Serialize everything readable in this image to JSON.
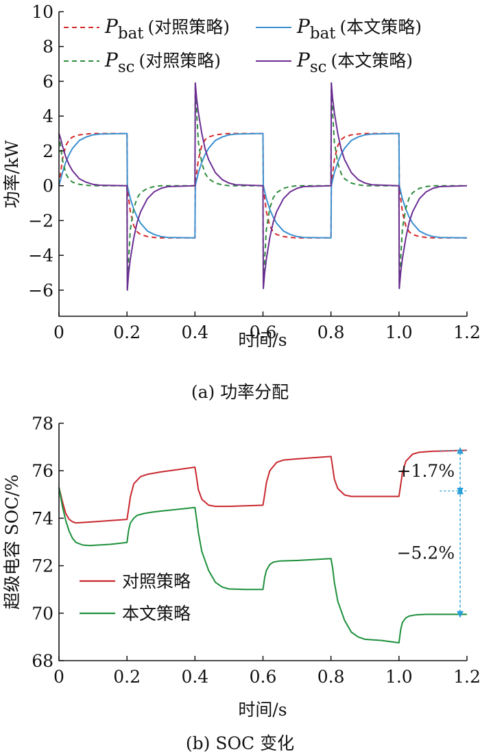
{
  "figure": {
    "caption_a": "(a)  功率分配",
    "caption_b": "(b)  SOC 变化"
  },
  "chart_data": [
    {
      "type": "line",
      "panel": "a",
      "title": "",
      "xlabel": "时间/s",
      "ylabel": "功率/kW",
      "xlim": [
        0,
        1.2
      ],
      "ylim": [
        -7.5,
        10
      ],
      "xticks": [
        0,
        0.2,
        0.4,
        0.6,
        0.8,
        1.0,
        1.2
      ],
      "xtick_labels": [
        "0",
        "0.2",
        "0.4",
        "0.6",
        "0.8",
        "1.0",
        "1.2"
      ],
      "yticks": [
        -6,
        -4,
        -2,
        0,
        2,
        4,
        6,
        8,
        10
      ],
      "ytick_labels": [
        "−6",
        "−4",
        "−2",
        "0",
        "2",
        "4",
        "6",
        "8",
        "10"
      ],
      "grid": false,
      "legend_position": "top",
      "series": [
        {
          "name": "Pbat (对照策略)",
          "sym": "P",
          "sub": "bat",
          "tag": "(对照策略)",
          "color": "#d62728",
          "dash": "dashed",
          "x": [
            0,
            0.01,
            0.02,
            0.03,
            0.04,
            0.06,
            0.08,
            0.1,
            0.2,
            0.201,
            0.21,
            0.22,
            0.23,
            0.24,
            0.26,
            0.28,
            0.3,
            0.4,
            0.401,
            0.41,
            0.42,
            0.43,
            0.44,
            0.46,
            0.48,
            0.5,
            0.6,
            0.601,
            0.61,
            0.62,
            0.63,
            0.64,
            0.66,
            0.68,
            0.7,
            0.8,
            0.801,
            0.81,
            0.82,
            0.83,
            0.84,
            0.86,
            0.88,
            0.9,
            1.0,
            1.001,
            1.01,
            1.02,
            1.03,
            1.04,
            1.06,
            1.08,
            1.1,
            1.2
          ],
          "y": [
            0,
            1.5,
            2.3,
            2.65,
            2.8,
            2.92,
            2.97,
            3.0,
            3.0,
            -0.1,
            -1.5,
            -2.3,
            -2.65,
            -2.8,
            -2.92,
            -2.97,
            -3.0,
            -3.0,
            0.1,
            1.5,
            2.3,
            2.65,
            2.8,
            2.92,
            2.97,
            3.0,
            3.0,
            -0.1,
            -1.5,
            -2.3,
            -2.65,
            -2.8,
            -2.92,
            -2.97,
            -3.0,
            -3.0,
            0.1,
            1.5,
            2.3,
            2.65,
            2.8,
            2.92,
            2.97,
            3.0,
            3.0,
            -0.1,
            -1.5,
            -2.3,
            -2.65,
            -2.8,
            -2.92,
            -2.97,
            -3.0,
            -3.0
          ]
        },
        {
          "name": "Pbat (本文策略)",
          "sym": "P",
          "sub": "bat",
          "tag": "(本文策略)",
          "color": "#3a8fd0",
          "dash": "solid",
          "x": [
            0,
            0.01,
            0.02,
            0.03,
            0.04,
            0.06,
            0.08,
            0.1,
            0.12,
            0.2,
            0.201,
            0.21,
            0.22,
            0.23,
            0.24,
            0.26,
            0.28,
            0.3,
            0.32,
            0.4,
            0.401,
            0.41,
            0.42,
            0.43,
            0.44,
            0.46,
            0.48,
            0.5,
            0.52,
            0.6,
            0.601,
            0.61,
            0.62,
            0.63,
            0.64,
            0.66,
            0.68,
            0.7,
            0.72,
            0.8,
            0.801,
            0.81,
            0.82,
            0.83,
            0.84,
            0.86,
            0.88,
            0.9,
            0.92,
            1.0,
            1.001,
            1.01,
            1.02,
            1.03,
            1.04,
            1.06,
            1.08,
            1.1,
            1.12,
            1.2
          ],
          "y": [
            0,
            0.75,
            1.35,
            1.8,
            2.15,
            2.6,
            2.8,
            2.92,
            2.97,
            3.0,
            0.0,
            -0.75,
            -1.35,
            -1.8,
            -2.15,
            -2.6,
            -2.8,
            -2.92,
            -2.97,
            -3.0,
            0.0,
            0.75,
            1.35,
            1.8,
            2.15,
            2.6,
            2.8,
            2.92,
            2.97,
            3.0,
            0.0,
            -0.75,
            -1.35,
            -1.8,
            -2.15,
            -2.6,
            -2.8,
            -2.92,
            -2.97,
            -3.0,
            0.0,
            0.75,
            1.35,
            1.8,
            2.15,
            2.6,
            2.8,
            2.92,
            2.97,
            3.0,
            0.0,
            -0.75,
            -1.35,
            -1.8,
            -2.15,
            -2.6,
            -2.8,
            -2.92,
            -2.97,
            -3.0
          ]
        },
        {
          "name": "Psc (对照策略)",
          "sym": "P",
          "sub": "sc",
          "tag": "(对照策略)",
          "color": "#2e8b3e",
          "dash": "dashed",
          "x": [
            0,
            0.005,
            0.01,
            0.02,
            0.03,
            0.04,
            0.06,
            0.08,
            0.1,
            0.2,
            0.201,
            0.205,
            0.21,
            0.22,
            0.23,
            0.24,
            0.26,
            0.28,
            0.3,
            0.4,
            0.401,
            0.405,
            0.41,
            0.42,
            0.43,
            0.44,
            0.46,
            0.48,
            0.5,
            0.6,
            0.601,
            0.605,
            0.61,
            0.62,
            0.63,
            0.64,
            0.66,
            0.68,
            0.7,
            0.8,
            0.801,
            0.805,
            0.81,
            0.82,
            0.83,
            0.84,
            0.86,
            0.88,
            0.9,
            1.0,
            1.001,
            1.005,
            1.01,
            1.02,
            1.03,
            1.04,
            1.06,
            1.08,
            1.1,
            1.2
          ],
          "y": [
            3.0,
            2.2,
            1.5,
            0.7,
            0.35,
            0.2,
            0.08,
            0.03,
            0.0,
            0.0,
            -6.0,
            -4.2,
            -2.5,
            -1.3,
            -0.7,
            -0.4,
            -0.15,
            -0.05,
            0.0,
            0.0,
            5.9,
            4.2,
            2.5,
            1.3,
            0.7,
            0.4,
            0.15,
            0.05,
            0.0,
            0.0,
            -5.9,
            -4.2,
            -2.5,
            -1.3,
            -0.7,
            -0.4,
            -0.15,
            -0.05,
            0.0,
            0.0,
            5.9,
            4.2,
            2.5,
            1.3,
            0.7,
            0.4,
            0.15,
            0.05,
            0.0,
            0.0,
            -5.9,
            -4.2,
            -2.5,
            -1.3,
            -0.7,
            -0.4,
            -0.15,
            -0.05,
            0.0,
            0.0
          ]
        },
        {
          "name": "Psc (本文策略)",
          "sym": "P",
          "sub": "sc",
          "tag": "(本文策略)",
          "color": "#6a2c91",
          "dash": "solid",
          "x": [
            0,
            0.005,
            0.01,
            0.02,
            0.03,
            0.04,
            0.06,
            0.08,
            0.1,
            0.12,
            0.2,
            0.201,
            0.205,
            0.21,
            0.22,
            0.23,
            0.24,
            0.26,
            0.28,
            0.3,
            0.32,
            0.4,
            0.401,
            0.405,
            0.41,
            0.42,
            0.43,
            0.44,
            0.46,
            0.48,
            0.5,
            0.52,
            0.6,
            0.601,
            0.605,
            0.61,
            0.62,
            0.63,
            0.64,
            0.66,
            0.68,
            0.7,
            0.72,
            0.8,
            0.801,
            0.805,
            0.81,
            0.82,
            0.83,
            0.84,
            0.86,
            0.88,
            0.9,
            0.92,
            1.0,
            1.001,
            1.005,
            1.01,
            1.02,
            1.03,
            1.04,
            1.06,
            1.08,
            1.1,
            1.12,
            1.2
          ],
          "y": [
            3.0,
            2.7,
            2.3,
            1.65,
            1.2,
            0.85,
            0.4,
            0.2,
            0.08,
            0.03,
            0.0,
            -6.0,
            -5.0,
            -4.2,
            -3.0,
            -2.1,
            -1.5,
            -0.75,
            -0.35,
            -0.15,
            -0.05,
            0.0,
            5.9,
            5.0,
            4.2,
            3.0,
            2.1,
            1.5,
            0.75,
            0.35,
            0.15,
            0.05,
            0.0,
            -5.9,
            -5.0,
            -4.2,
            -3.0,
            -2.1,
            -1.5,
            -0.75,
            -0.35,
            -0.15,
            -0.05,
            0.0,
            5.9,
            5.0,
            4.2,
            3.0,
            2.1,
            1.5,
            0.75,
            0.35,
            0.15,
            0.05,
            0.0,
            -5.9,
            -5.0,
            -4.2,
            -3.0,
            -2.1,
            -1.5,
            -0.75,
            -0.35,
            -0.15,
            -0.05,
            0.0
          ]
        }
      ]
    },
    {
      "type": "line",
      "panel": "b",
      "title": "",
      "xlabel": "时间/s",
      "ylabel": "超级电容 SOC/%",
      "xlim": [
        0,
        1.2
      ],
      "ylim": [
        68,
        78
      ],
      "xticks": [
        0,
        0.2,
        0.4,
        0.6,
        0.8,
        1.0,
        1.2
      ],
      "xtick_labels": [
        "0",
        "0.2",
        "0.4",
        "0.6",
        "0.8",
        "1.0",
        "1.2"
      ],
      "yticks": [
        68,
        70,
        72,
        74,
        76,
        78
      ],
      "ytick_labels": [
        "68",
        "70",
        "72",
        "74",
        "76",
        "78"
      ],
      "grid": false,
      "legend_position": "left",
      "series": [
        {
          "name": "对照策略",
          "color": "#c8262e",
          "dash": "solid",
          "x": [
            0,
            0.01,
            0.02,
            0.03,
            0.04,
            0.05,
            0.1,
            0.15,
            0.2,
            0.205,
            0.21,
            0.22,
            0.24,
            0.26,
            0.3,
            0.4,
            0.405,
            0.41,
            0.42,
            0.44,
            0.46,
            0.5,
            0.6,
            0.605,
            0.61,
            0.62,
            0.64,
            0.66,
            0.7,
            0.8,
            0.805,
            0.81,
            0.82,
            0.84,
            0.86,
            0.9,
            1.0,
            1.005,
            1.01,
            1.02,
            1.04,
            1.06,
            1.1,
            1.2
          ],
          "y": [
            75.3,
            74.7,
            74.2,
            73.95,
            73.85,
            73.8,
            73.85,
            73.9,
            73.95,
            74.4,
            74.9,
            75.45,
            75.75,
            75.85,
            75.95,
            76.15,
            75.7,
            75.2,
            74.8,
            74.55,
            74.5,
            74.5,
            74.55,
            75.0,
            75.5,
            76.0,
            76.35,
            76.45,
            76.5,
            76.6,
            76.15,
            75.65,
            75.25,
            74.98,
            74.92,
            74.92,
            74.92,
            75.4,
            75.9,
            76.4,
            76.7,
            76.78,
            76.82,
            76.86
          ]
        },
        {
          "name": "本文策略",
          "color": "#1b8f3a",
          "dash": "solid",
          "x": [
            0,
            0.01,
            0.02,
            0.03,
            0.04,
            0.05,
            0.07,
            0.09,
            0.15,
            0.2,
            0.205,
            0.21,
            0.22,
            0.23,
            0.25,
            0.27,
            0.3,
            0.4,
            0.405,
            0.41,
            0.42,
            0.44,
            0.46,
            0.48,
            0.5,
            0.55,
            0.6,
            0.605,
            0.61,
            0.62,
            0.63,
            0.65,
            0.7,
            0.8,
            0.805,
            0.81,
            0.82,
            0.84,
            0.86,
            0.88,
            0.9,
            0.95,
            1.0,
            1.005,
            1.01,
            1.02,
            1.03,
            1.05,
            1.08,
            1.2
          ],
          "y": [
            75.3,
            74.5,
            73.9,
            73.45,
            73.15,
            72.98,
            72.87,
            72.85,
            72.9,
            72.98,
            73.5,
            73.8,
            74.0,
            74.12,
            74.2,
            74.25,
            74.3,
            74.45,
            73.95,
            73.4,
            72.6,
            71.8,
            71.3,
            71.1,
            71.02,
            71.0,
            71.0,
            71.5,
            71.8,
            72.05,
            72.15,
            72.2,
            72.22,
            72.3,
            71.9,
            71.3,
            70.5,
            69.7,
            69.2,
            69.0,
            68.9,
            68.85,
            68.75,
            69.3,
            69.6,
            69.8,
            69.88,
            69.93,
            69.95,
            69.95
          ]
        }
      ],
      "annotations": [
        {
          "text": "+1.7%",
          "x1": 1.18,
          "y_from": 75.15,
          "y_to": 76.85
        },
        {
          "text": "−5.2%",
          "x1": 1.18,
          "y_from": 69.95,
          "y_to": 75.15
        }
      ]
    }
  ]
}
